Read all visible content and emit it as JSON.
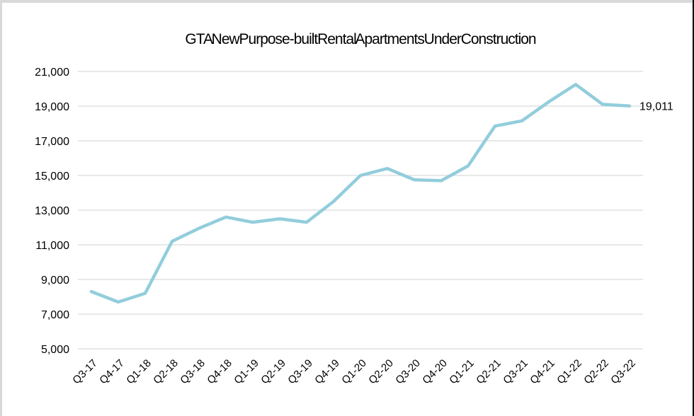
{
  "colors": {
    "line": "#92CDDC",
    "gridline": "#D9D9D9",
    "text": "#000000",
    "edge_gray": "#D9D9D9",
    "edge_black": "#000000",
    "background": "#FFFFFF"
  },
  "chart_data": {
    "type": "line",
    "title": "GTA New Purpose-built Rental Apartments Under Construction",
    "categories": [
      "Q3-17",
      "Q4-17",
      "Q1-18",
      "Q2-18",
      "Q3-18",
      "Q4-18",
      "Q1-19",
      "Q2-19",
      "Q3-19",
      "Q4-19",
      "Q1-20",
      "Q2-20",
      "Q3-20",
      "Q4-20",
      "Q1-21",
      "Q2-21",
      "Q3-21",
      "Q4-21",
      "Q1-22",
      "Q2-22",
      "Q3-22"
    ],
    "series": [
      {
        "name": "Apartments under construction",
        "values": [
          8300,
          7700,
          8200,
          11200,
          11950,
          12600,
          12300,
          12500,
          12300,
          13500,
          15000,
          15400,
          14750,
          14700,
          15550,
          17850,
          18150,
          19250,
          20250,
          19100,
          19011
        ]
      }
    ],
    "end_label": "19,011",
    "xlabel": "",
    "ylabel": "",
    "ylim": [
      5000,
      21000
    ],
    "yticks": [
      5000,
      7000,
      9000,
      11000,
      13000,
      15000,
      17000,
      19000,
      21000
    ],
    "ytick_labels": [
      "5,000",
      "7,000",
      "9,000",
      "11,000",
      "13,000",
      "15,000",
      "17,000",
      "19,000",
      "21,000"
    ],
    "grid": true,
    "legend": "none"
  }
}
